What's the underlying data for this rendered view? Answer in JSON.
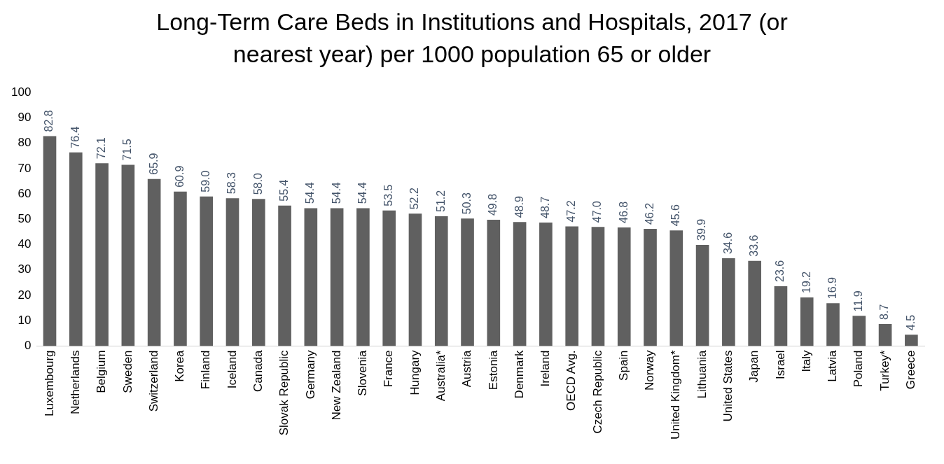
{
  "chart_data": {
    "type": "bar",
    "title": "Long-Term Care Beds in Institutions and Hospitals, 2017 (or nearest year) per 1000 population 65 or older",
    "categories": [
      "Luxembourg",
      "Netherlands",
      "Belgium",
      "Sweden",
      "Switzerland",
      "Korea",
      "Finland",
      "Iceland",
      "Canada",
      "Slovak Republic",
      "Germany",
      "New Zealand",
      "Slovenia",
      "France",
      "Hungary",
      "Australia*",
      "Austria",
      "Estonia",
      "Denmark",
      "Ireland",
      "OECD Avg.",
      "Czech Republic",
      "Spain",
      "Norway",
      "United Kingdom*",
      "Lithuania",
      "United States",
      "Japan",
      "Israel",
      "Italy",
      "Latvia",
      "Poland",
      "Turkey*",
      "Greece"
    ],
    "values": [
      82.8,
      76.4,
      72.1,
      71.5,
      65.9,
      60.9,
      59.0,
      58.3,
      58.0,
      55.4,
      54.4,
      54.4,
      54.4,
      53.5,
      52.2,
      51.2,
      50.3,
      49.8,
      48.9,
      48.7,
      47.2,
      47.0,
      46.8,
      46.2,
      45.6,
      39.9,
      34.6,
      33.6,
      23.6,
      19.2,
      16.9,
      11.9,
      8.7,
      4.5
    ],
    "value_labels": [
      "82.8",
      "76.4",
      "72.1",
      "71.5",
      "65.9",
      "60.9",
      "59.0",
      "58.3",
      "58.0",
      "55.4",
      "54.4",
      "54.4",
      "54.4",
      "53.5",
      "52.2",
      "51.2",
      "50.3",
      "49.8",
      "48.9",
      "48.7",
      "47.2",
      "47.0",
      "46.8",
      "46.2",
      "45.6",
      "39.9",
      "34.6",
      "33.6",
      "23.6",
      "19.2",
      "16.9",
      "11.9",
      "8.7",
      "4.5"
    ],
    "color": "#606060",
    "ylim": [
      0,
      100
    ],
    "yticks": [
      0,
      10,
      20,
      30,
      40,
      50,
      60,
      70,
      80,
      90,
      100
    ],
    "grid": false,
    "legend": false
  }
}
